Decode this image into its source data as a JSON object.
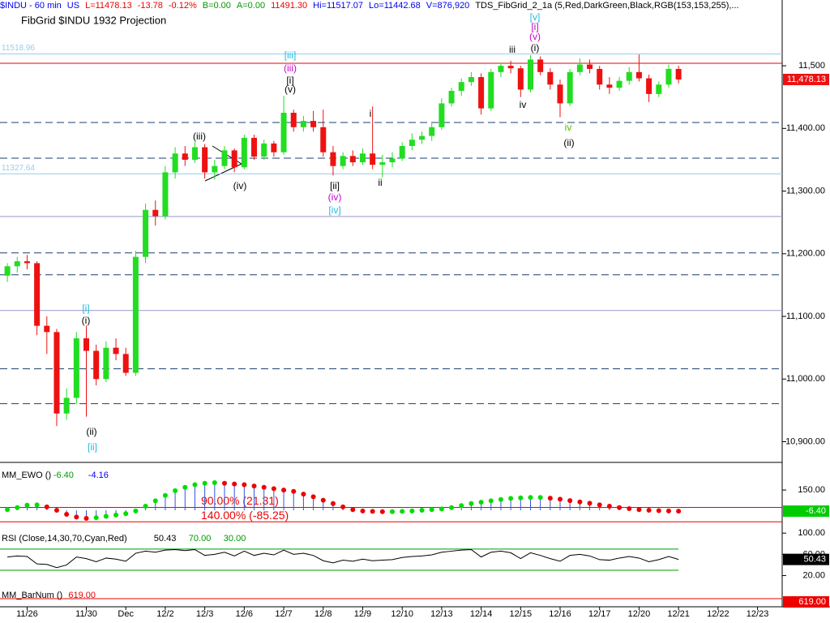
{
  "header": {
    "items": [
      {
        "text": "$INDU - 60 min",
        "color": "#0000ee"
      },
      {
        "text": "US",
        "color": "#0000ee"
      },
      {
        "text": "L=11478.13",
        "color": "#ee0000"
      },
      {
        "text": "-13.78",
        "color": "#ee0000"
      },
      {
        "text": "-0.12%",
        "color": "#ee0000"
      },
      {
        "text": "B=0.00",
        "color": "#009900"
      },
      {
        "text": "A=0.00",
        "color": "#009900"
      },
      {
        "text": "11491.30",
        "color": "#ee0000"
      },
      {
        "text": "Hi=11517.07",
        "color": "#0000ee"
      },
      {
        "text": "Lo=11442.68",
        "color": "#0000ee"
      },
      {
        "text": "V=876,920",
        "color": "#0000ee"
      }
    ],
    "indicator": "TDS_FibGrid_2_1a (5,Red,DarkGreen,Black,RGB(153,153,255),..."
  },
  "chart_data": [
    {
      "type": "candlestick",
      "title": "FibGrid $INDU 1932 Projection",
      "categories": [
        null,
        null,
        "11/26",
        null,
        null,
        null,
        null,
        null,
        "11/30",
        null,
        null,
        null,
        "Dec",
        null,
        null,
        null,
        "12/2",
        null,
        null,
        null,
        "12/3",
        null,
        null,
        null,
        "12/6",
        null,
        null,
        null,
        "12/7",
        null,
        null,
        null,
        "12/8",
        null,
        null,
        null,
        "12/9",
        null,
        null,
        null,
        "12/10",
        null,
        null,
        null,
        "12/13",
        null,
        null,
        null,
        "12/14",
        null,
        null,
        null,
        "12/15",
        null,
        null,
        null,
        "12/16",
        null,
        null,
        null,
        "12/17",
        null,
        null,
        null,
        "12/20",
        null,
        null,
        null,
        "12/21",
        null,
        null,
        null,
        "12/22",
        null,
        null,
        null,
        "12/23",
        null,
        null
      ],
      "open": [
        11165,
        11180,
        11188,
        11185,
        11085,
        11075,
        10945,
        10970,
        11065,
        11045,
        11000,
        11050,
        11040,
        11010,
        11195,
        11270,
        11260,
        11330,
        11360,
        11350,
        11370,
        11330,
        11340,
        11365,
        11338,
        11385,
        11355,
        11376,
        11362,
        11425,
        11402,
        11412,
        11402,
        11362,
        11340,
        11356,
        11346,
        11360,
        11342,
        11346,
        11352,
        11372,
        11382,
        11388,
        11402,
        11440,
        11460,
        11474,
        11482,
        11432,
        11490,
        11500,
        11496,
        11462,
        11510,
        11490,
        11470,
        11440,
        11490,
        11502,
        11495,
        11470,
        11465,
        11476,
        11490,
        11480,
        11455,
        11470,
        11495,
        null,
        null,
        null,
        null,
        null,
        null,
        null,
        null,
        null,
        null
      ],
      "high": [
        11185,
        11195,
        11198,
        11188,
        11100,
        11080,
        10985,
        11075,
        11085,
        11055,
        11060,
        11065,
        11050,
        11205,
        11280,
        11285,
        11340,
        11370,
        11372,
        11378,
        11375,
        11350,
        11372,
        11368,
        11390,
        11390,
        11382,
        11380,
        11452,
        11430,
        11420,
        11428,
        11430,
        11372,
        11362,
        11365,
        11368,
        11435,
        11358,
        11362,
        11378,
        11392,
        11395,
        11408,
        11448,
        11465,
        11480,
        11490,
        11488,
        11495,
        11505,
        11508,
        11500,
        11517,
        11515,
        11496,
        11478,
        11495,
        11512,
        11510,
        11500,
        11482,
        11482,
        11498,
        11518,
        11486,
        11475,
        11502,
        11500,
        null,
        null,
        null,
        null,
        null,
        null,
        null,
        null,
        null,
        null
      ],
      "low": [
        11155,
        11170,
        11175,
        11070,
        11040,
        10925,
        10935,
        10960,
        10940,
        10990,
        10995,
        11030,
        11005,
        11005,
        11185,
        11245,
        11255,
        11320,
        11340,
        11345,
        11320,
        11318,
        11335,
        11330,
        11335,
        11350,
        11350,
        11355,
        11358,
        11395,
        11395,
        11395,
        11355,
        11325,
        11335,
        11340,
        11342,
        11335,
        11322,
        11338,
        11348,
        11365,
        11375,
        11380,
        11398,
        11435,
        11452,
        11468,
        11422,
        11428,
        11482,
        11488,
        11450,
        11458,
        11485,
        11462,
        11418,
        11436,
        11485,
        11488,
        11462,
        11455,
        11460,
        11470,
        11475,
        11442,
        11450,
        11465,
        11472,
        null,
        null,
        null,
        null,
        null,
        null,
        null,
        null,
        null,
        null
      ],
      "close": [
        11180,
        11188,
        11185,
        11085,
        11075,
        10945,
        10970,
        11065,
        11045,
        11000,
        11050,
        11040,
        11010,
        11195,
        11270,
        11260,
        11330,
        11360,
        11350,
        11370,
        11330,
        11340,
        11365,
        11338,
        11385,
        11355,
        11376,
        11362,
        11425,
        11402,
        11412,
        11402,
        11362,
        11340,
        11356,
        11346,
        11360,
        11342,
        11346,
        11352,
        11372,
        11382,
        11388,
        11402,
        11440,
        11460,
        11474,
        11482,
        11432,
        11490,
        11500,
        11496,
        11462,
        11510,
        11490,
        11470,
        11440,
        11490,
        11502,
        11495,
        11470,
        11465,
        11476,
        11490,
        11480,
        11455,
        11470,
        11495,
        11478.13,
        null,
        null,
        null,
        null,
        null,
        null,
        null,
        null,
        null,
        null
      ],
      "up_color": "#22dd22",
      "down_color": "#ee1111",
      "ylim": [
        10867,
        11605
      ],
      "yticks": [
        {
          "value": 10900,
          "label": "10,900.00"
        },
        {
          "value": 11000,
          "label": "11,000.00"
        },
        {
          "value": 11100,
          "label": "11,100.00"
        },
        {
          "value": 11200,
          "label": "11,200.00"
        },
        {
          "value": 11300,
          "label": "11,300.00"
        },
        {
          "value": 11400,
          "label": "11,400.00"
        },
        {
          "value": 11500,
          "label": "11,500"
        }
      ],
      "marked_levels": [
        11518.96,
        11327.64
      ],
      "marked_color": "#99ccee",
      "levels": [
        {
          "value": 11504,
          "color": "#ee0000",
          "dashed": false
        },
        {
          "value": 11409.5,
          "color": "#1a3f6f",
          "dashed": true
        },
        {
          "value": 11352.6,
          "color": "#1a3f6f",
          "dashed": true
        },
        {
          "value": 11259.5,
          "color": "#9999cc",
          "dashed": false
        },
        {
          "value": 11201.3,
          "color": "#1a3f6f",
          "dashed": true
        },
        {
          "value": 11166.4,
          "color": "#1a3f6f",
          "dashed": true
        },
        {
          "value": 11109.5,
          "color": "#9999cc",
          "dashed": false
        },
        {
          "value": 11016.4,
          "color": "#1a3f6f",
          "dashed": true
        },
        {
          "value": 10960.7,
          "color": "#1a3f6f",
          "dashed": true
        }
      ],
      "last": {
        "value": 11478.13,
        "label": "11,478.13"
      },
      "last_color": "#ee1111",
      "annotations": [
        {
          "text": "[v]",
          "color": "#22bbdd"
        },
        {
          "text": "[i]",
          "color": "#cc00cc"
        },
        {
          "text": "(v)",
          "color": "#cc00cc"
        },
        {
          "text": "(i)",
          "color": "#000000"
        },
        {
          "text": "iii",
          "color": "#000000"
        },
        {
          "text": "[iii]",
          "color": "#22bbdd"
        },
        {
          "text": "(iii)",
          "color": "#cc00cc"
        },
        {
          "text": "[i]",
          "color": "#000000"
        },
        {
          "text": "(v)",
          "color": "#000000"
        },
        {
          "text": "(iii)",
          "color": "#000000"
        },
        {
          "text": "(iv)",
          "color": "#000000"
        },
        {
          "text": "[ii]",
          "color": "#000000"
        },
        {
          "text": "(iv)",
          "color": "#cc00cc"
        },
        {
          "text": "[iv]",
          "color": "#22bbdd"
        },
        {
          "text": "i",
          "color": "#000000"
        },
        {
          "text": "ii",
          "color": "#000000"
        },
        {
          "text": "iv",
          "color": "#000000"
        },
        {
          "text": "iv",
          "color": "#55bb00"
        },
        {
          "text": "(ii)",
          "color": "#000000"
        },
        {
          "text": "[i]",
          "color": "#22bbdd"
        },
        {
          "text": "(i)",
          "color": "#000000"
        },
        {
          "text": "(ii)",
          "color": "#000000"
        },
        {
          "text": "[ii]",
          "color": "#22bbdd"
        }
      ]
    },
    {
      "type": "dot",
      "title": "MM_EWO ()",
      "readouts": [
        {
          "text": "-6.40",
          "color": "#009900"
        },
        {
          "text": "-4.16",
          "color": "#0000ee"
        }
      ],
      "values": [
        5,
        20,
        38,
        40,
        25,
        0,
        -30,
        -50,
        -60,
        -55,
        -45,
        -35,
        -25,
        -5,
        30,
        70,
        110,
        145,
        170,
        190,
        200,
        205,
        200,
        195,
        190,
        180,
        170,
        160,
        150,
        140,
        120,
        100,
        75,
        50,
        25,
        5,
        -5,
        -8,
        -10,
        -10,
        -8,
        -5,
        0,
        5,
        10,
        20,
        35,
        50,
        60,
        70,
        80,
        88,
        92,
        95,
        95,
        90,
        82,
        72,
        62,
        52,
        40,
        30,
        20,
        12,
        5,
        0,
        -3,
        -5,
        -6.4,
        null,
        null,
        null,
        null,
        null,
        null,
        null,
        null,
        null,
        null
      ],
      "up_color": "#00dd00",
      "down_color": "#ee0000",
      "bar_color": "#3355dd",
      "ylim": [
        -114,
        343
      ],
      "yticks": [
        {
          "value": 150,
          "label": "150.00"
        }
      ],
      "levels": [
        {
          "value": 21.31,
          "label": "90.00% (21.31)"
        },
        {
          "value": -85.25,
          "label": "140.00% (-85.25)"
        }
      ],
      "level_color": "#ee0000",
      "last": {
        "value": -6.4,
        "label": "-6.40"
      },
      "last_color": "#00cc00"
    },
    {
      "type": "line",
      "title": "RSI (Close,14,30,70,Cyan,Red)",
      "readouts": [
        {
          "text": "50.43",
          "color": "#000000"
        },
        {
          "text": "70.00",
          "color": "#009900"
        },
        {
          "text": "30.00",
          "color": "#009900"
        }
      ],
      "values": [
        55,
        57,
        56,
        42,
        41,
        35,
        40,
        55,
        52,
        46,
        53,
        51,
        47,
        62,
        66,
        64,
        68,
        69,
        67,
        69,
        58,
        60,
        64,
        57,
        66,
        58,
        62,
        59,
        68,
        60,
        62,
        58,
        48,
        44,
        49,
        47,
        51,
        48,
        49,
        50,
        54,
        56,
        57,
        59,
        64,
        66,
        68,
        69,
        55,
        64,
        66,
        63,
        52,
        63,
        58,
        52,
        47,
        58,
        60,
        57,
        50,
        49,
        53,
        56,
        53,
        46,
        50,
        56,
        50.43,
        null,
        null,
        null,
        null,
        null,
        null,
        null,
        null,
        null,
        null
      ],
      "color": "#000000",
      "ylim": [
        4,
        111
      ],
      "yticks": [
        {
          "value": 100,
          "label": "100.00"
        },
        {
          "value": 60,
          "label": "60.00"
        },
        {
          "value": 20,
          "label": "20.00"
        }
      ],
      "levels": [
        70,
        30
      ],
      "level_color": "#009900",
      "last": {
        "value": 50.43,
        "label": "50.43"
      },
      "last_color": "#000000"
    },
    {
      "type": "level",
      "title": "MM_BarNum ()",
      "readouts": [
        {
          "text": "619.00",
          "color": "#ee0000"
        }
      ],
      "last": {
        "value": 619,
        "label": "619.00"
      },
      "last_color": "#ee0000"
    }
  ]
}
